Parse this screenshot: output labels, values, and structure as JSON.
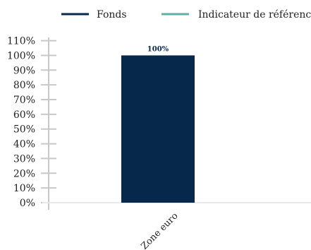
{
  "colors": {
    "fund": "#06284a",
    "benchmark": "#5fb0a6",
    "axis": "#c8c8c8",
    "baseline": "#e6e8f0"
  },
  "chart_data": {
    "type": "bar",
    "categories": [
      "Zone euro"
    ],
    "series": [
      {
        "name": "Fonds",
        "values": [
          100
        ],
        "labels": [
          "100%"
        ]
      },
      {
        "name": "Indicateur de référence",
        "values": [
          null
        ],
        "labels": []
      }
    ],
    "ylim": [
      0,
      110
    ],
    "yticks": [
      0,
      10,
      20,
      30,
      40,
      50,
      60,
      70,
      80,
      90,
      100,
      110
    ],
    "ytick_labels": [
      "0%",
      "10%",
      "20%",
      "30%",
      "40%",
      "50%",
      "60%",
      "70%",
      "80%",
      "90%",
      "100%",
      "110%"
    ],
    "legend": "top",
    "grid": false
  }
}
